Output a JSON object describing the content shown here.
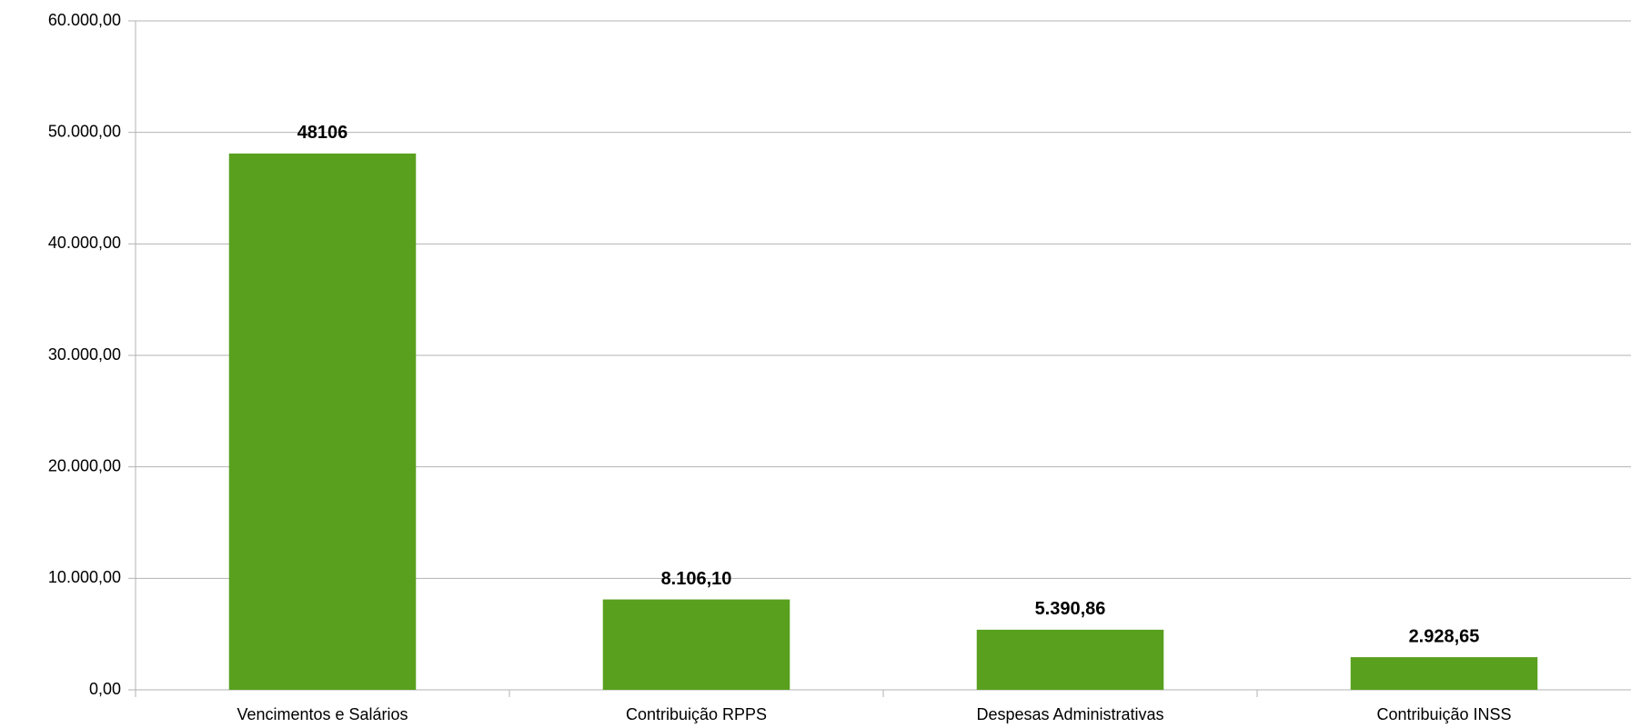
{
  "chart_data": {
    "type": "bar",
    "categories": [
      "Vencimentos e Salários",
      "Contribuição RPPS",
      "Despesas Administrativas",
      "Contribuição INSS"
    ],
    "values": [
      48106,
      8106.1,
      5390.86,
      2928.65
    ],
    "value_labels": [
      "48106",
      "8.106,10",
      "5.390,86",
      "2.928,65"
    ],
    "color": "#58a01e",
    "ylim": [
      0,
      60000
    ],
    "yticks": [
      {
        "value": 0,
        "label": "0,00"
      },
      {
        "value": 10000,
        "label": "10.000,00"
      },
      {
        "value": 20000,
        "label": "20.000,00"
      },
      {
        "value": 30000,
        "label": "30.000,00"
      },
      {
        "value": 40000,
        "label": "40.000,00"
      },
      {
        "value": 50000,
        "label": "50.000,00"
      },
      {
        "value": 60000,
        "label": "60.000,00"
      }
    ],
    "grid": true
  }
}
